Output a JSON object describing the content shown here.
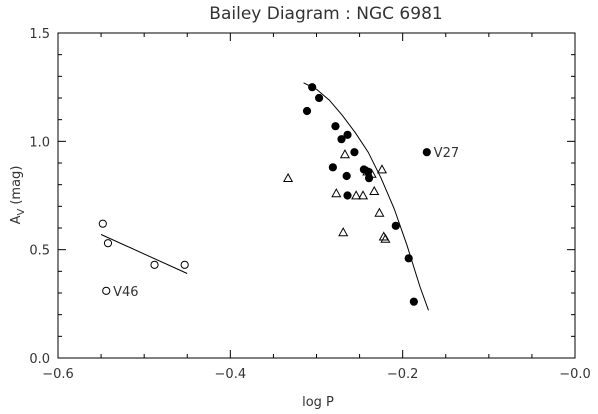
{
  "chart_data": {
    "type": "scatter",
    "title": "Bailey Diagram : NGC 6981",
    "xlabel": "log P",
    "ylabel_main": "A",
    "ylabel_sub": "V",
    "ylabel_unit": "(mag)",
    "xlim": [
      -0.6,
      0.0
    ],
    "ylim": [
      0.0,
      1.5
    ],
    "xticks": [
      -0.6,
      -0.4,
      -0.2,
      0.0
    ],
    "xtick_labels": [
      "−0.6",
      "−0.4",
      "−0.2",
      "−0.0"
    ],
    "yticks": [
      0.0,
      0.5,
      1.0,
      1.5
    ],
    "ytick_labels": [
      "0.0",
      "0.5",
      "1.0",
      "1.5"
    ],
    "grid": false,
    "series": [
      {
        "marker": "filled-circle",
        "points": [
          {
            "x": -0.305,
            "y": 1.25
          },
          {
            "x": -0.297,
            "y": 1.2
          },
          {
            "x": -0.311,
            "y": 1.14
          },
          {
            "x": -0.278,
            "y": 1.07
          },
          {
            "x": -0.264,
            "y": 1.03
          },
          {
            "x": -0.271,
            "y": 1.01
          },
          {
            "x": -0.256,
            "y": 0.95
          },
          {
            "x": -0.281,
            "y": 0.88
          },
          {
            "x": -0.245,
            "y": 0.87
          },
          {
            "x": -0.24,
            "y": 0.86
          },
          {
            "x": -0.265,
            "y": 0.84
          },
          {
            "x": -0.239,
            "y": 0.83
          },
          {
            "x": -0.264,
            "y": 0.75
          },
          {
            "x": -0.208,
            "y": 0.61
          },
          {
            "x": -0.193,
            "y": 0.46
          },
          {
            "x": -0.187,
            "y": 0.26
          },
          {
            "x": -0.172,
            "y": 0.95
          }
        ]
      },
      {
        "marker": "open-triangle",
        "points": [
          {
            "x": -0.333,
            "y": 0.83
          },
          {
            "x": -0.267,
            "y": 0.94
          },
          {
            "x": -0.241,
            "y": 0.86
          },
          {
            "x": -0.236,
            "y": 0.85
          },
          {
            "x": -0.224,
            "y": 0.87
          },
          {
            "x": -0.277,
            "y": 0.76
          },
          {
            "x": -0.254,
            "y": 0.75
          },
          {
            "x": -0.246,
            "y": 0.75
          },
          {
            "x": -0.233,
            "y": 0.77
          },
          {
            "x": -0.227,
            "y": 0.67
          },
          {
            "x": -0.269,
            "y": 0.58
          },
          {
            "x": -0.222,
            "y": 0.56
          },
          {
            "x": -0.22,
            "y": 0.55
          }
        ]
      },
      {
        "marker": "open-circle",
        "points": [
          {
            "x": -0.548,
            "y": 0.62
          },
          {
            "x": -0.542,
            "y": 0.53
          },
          {
            "x": -0.488,
            "y": 0.43
          },
          {
            "x": -0.453,
            "y": 0.43
          },
          {
            "x": -0.544,
            "y": 0.31
          }
        ]
      }
    ],
    "fit_curves": [
      {
        "kind": "curve",
        "points": [
          {
            "x": -0.315,
            "y": 1.27
          },
          {
            "x": -0.3,
            "y": 1.24
          },
          {
            "x": -0.285,
            "y": 1.19
          },
          {
            "x": -0.27,
            "y": 1.12
          },
          {
            "x": -0.255,
            "y": 1.04
          },
          {
            "x": -0.24,
            "y": 0.95
          },
          {
            "x": -0.225,
            "y": 0.83
          },
          {
            "x": -0.21,
            "y": 0.69
          },
          {
            "x": -0.195,
            "y": 0.52
          },
          {
            "x": -0.18,
            "y": 0.33
          },
          {
            "x": -0.17,
            "y": 0.22
          }
        ]
      },
      {
        "kind": "line",
        "points": [
          {
            "x": -0.55,
            "y": 0.57
          },
          {
            "x": -0.45,
            "y": 0.39
          }
        ]
      }
    ],
    "annotations": [
      {
        "text": "V27",
        "x": -0.164,
        "y": 0.95
      },
      {
        "text": "V46",
        "x": -0.536,
        "y": 0.31
      }
    ]
  }
}
